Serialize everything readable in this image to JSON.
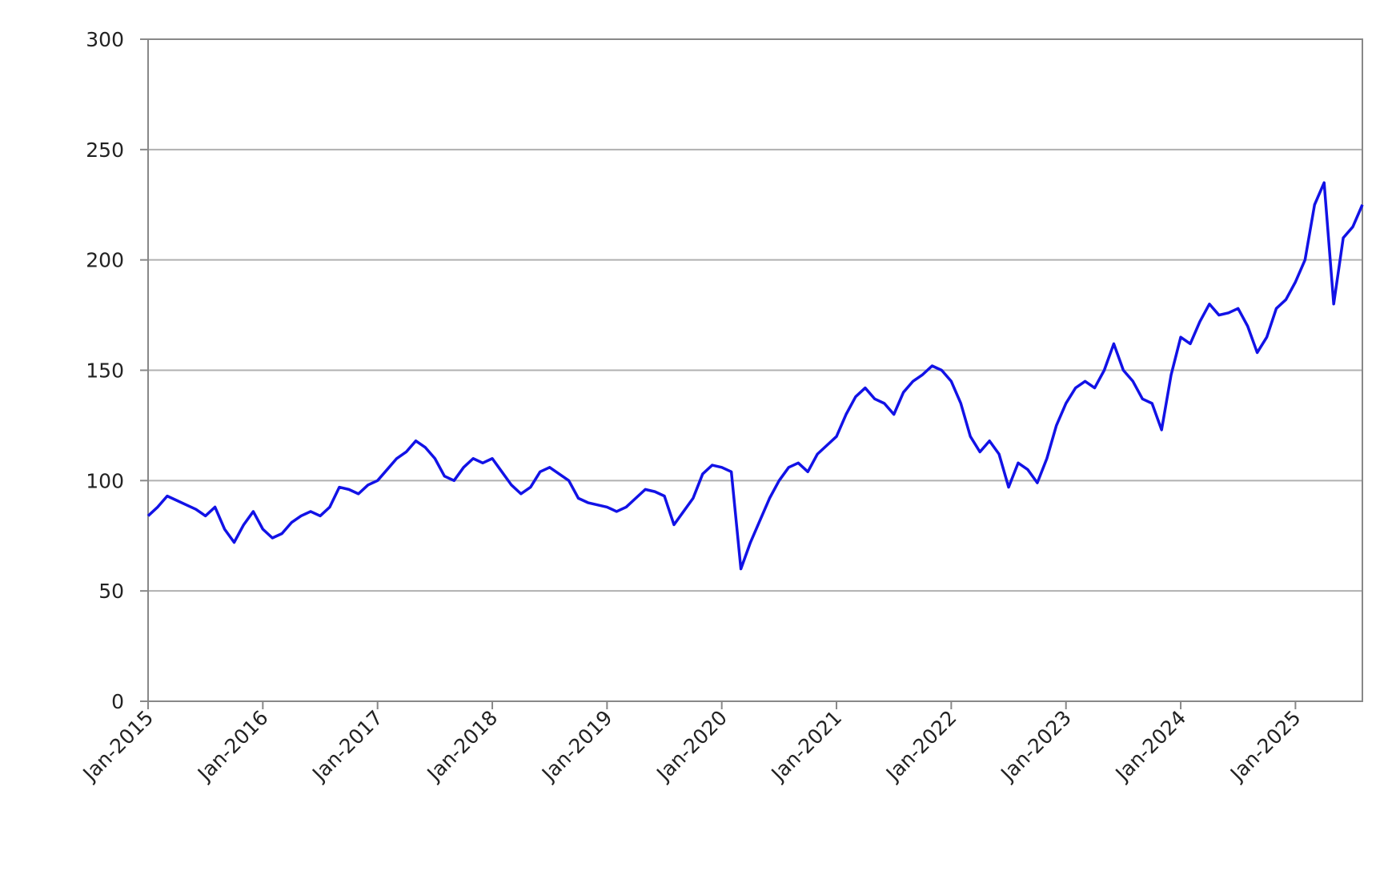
{
  "chart_data": {
    "type": "line",
    "x": [
      "2015-01",
      "2015-02",
      "2015-03",
      "2015-04",
      "2015-05",
      "2015-06",
      "2015-07",
      "2015-08",
      "2015-09",
      "2015-10",
      "2015-11",
      "2015-12",
      "2016-01",
      "2016-02",
      "2016-03",
      "2016-04",
      "2016-05",
      "2016-06",
      "2016-07",
      "2016-08",
      "2016-09",
      "2016-10",
      "2016-11",
      "2016-12",
      "2017-01",
      "2017-02",
      "2017-03",
      "2017-04",
      "2017-05",
      "2017-06",
      "2017-07",
      "2017-08",
      "2017-09",
      "2017-10",
      "2017-11",
      "2017-12",
      "2018-01",
      "2018-02",
      "2018-03",
      "2018-04",
      "2018-05",
      "2018-06",
      "2018-07",
      "2018-08",
      "2018-09",
      "2018-10",
      "2018-11",
      "2018-12",
      "2019-01",
      "2019-02",
      "2019-03",
      "2019-04",
      "2019-05",
      "2019-06",
      "2019-07",
      "2019-08",
      "2019-09",
      "2019-10",
      "2019-11",
      "2019-12",
      "2020-01",
      "2020-02",
      "2020-03",
      "2020-04",
      "2020-05",
      "2020-06",
      "2020-07",
      "2020-08",
      "2020-09",
      "2020-10",
      "2020-11",
      "2020-12",
      "2021-01",
      "2021-02",
      "2021-03",
      "2021-04",
      "2021-05",
      "2021-06",
      "2021-07",
      "2021-08",
      "2021-09",
      "2021-10",
      "2021-11",
      "2021-12",
      "2022-01",
      "2022-02",
      "2022-03",
      "2022-04",
      "2022-05",
      "2022-06",
      "2022-07",
      "2022-08",
      "2022-09",
      "2022-10",
      "2022-11",
      "2022-12",
      "2023-01",
      "2023-02",
      "2023-03",
      "2023-04",
      "2023-05",
      "2023-06",
      "2023-07",
      "2023-08",
      "2023-09",
      "2023-10",
      "2023-11",
      "2023-12",
      "2024-01",
      "2024-02",
      "2024-03",
      "2024-04",
      "2024-05",
      "2024-06",
      "2024-07",
      "2024-08",
      "2024-09",
      "2024-10",
      "2024-11",
      "2024-12",
      "2025-01",
      "2025-02",
      "2025-03",
      "2025-04",
      "2025-05",
      "2025-06",
      "2025-07",
      "2025-08"
    ],
    "series": [
      {
        "color": "#1212e6",
        "values": [
          84,
          88,
          93,
          91,
          89,
          87,
          84,
          88,
          78,
          72,
          80,
          86,
          78,
          74,
          76,
          81,
          84,
          86,
          84,
          88,
          97,
          96,
          94,
          98,
          100,
          105,
          110,
          113,
          118,
          115,
          110,
          102,
          100,
          106,
          110,
          108,
          110,
          104,
          98,
          94,
          97,
          104,
          106,
          103,
          100,
          92,
          90,
          89,
          88,
          86,
          88,
          92,
          96,
          95,
          93,
          80,
          86,
          92,
          103,
          107,
          106,
          104,
          60,
          72,
          82,
          92,
          100,
          106,
          108,
          104,
          112,
          116,
          120,
          130,
          138,
          142,
          137,
          135,
          130,
          140,
          145,
          148,
          152,
          150,
          145,
          135,
          120,
          113,
          118,
          112,
          97,
          108,
          105,
          99,
          110,
          125,
          135,
          142,
          145,
          142,
          150,
          162,
          150,
          145,
          137,
          135,
          123,
          148,
          165,
          162,
          172,
          180,
          175,
          176,
          178,
          170,
          158,
          165,
          178,
          182,
          190,
          200,
          225,
          235,
          180,
          210,
          215,
          225
        ]
      }
    ],
    "xlim": [
      "2015-01",
      "2025-08"
    ],
    "xticks": [
      {
        "value": "2015-01",
        "label": "Jan-2015"
      },
      {
        "value": "2016-01",
        "label": "Jan-2016"
      },
      {
        "value": "2017-01",
        "label": "Jan-2017"
      },
      {
        "value": "2018-01",
        "label": "Jan-2018"
      },
      {
        "value": "2019-01",
        "label": "Jan-2019"
      },
      {
        "value": "2020-01",
        "label": "Jan-2020"
      },
      {
        "value": "2021-01",
        "label": "Jan-2021"
      },
      {
        "value": "2022-01",
        "label": "Jan-2022"
      },
      {
        "value": "2023-01",
        "label": "Jan-2023"
      },
      {
        "value": "2024-01",
        "label": "Jan-2024"
      },
      {
        "value": "2025-01",
        "label": "Jan-2025"
      }
    ],
    "ylim": [
      0,
      300
    ],
    "yticks": [
      0,
      50,
      100,
      150,
      200,
      250,
      300
    ],
    "grid": true
  }
}
